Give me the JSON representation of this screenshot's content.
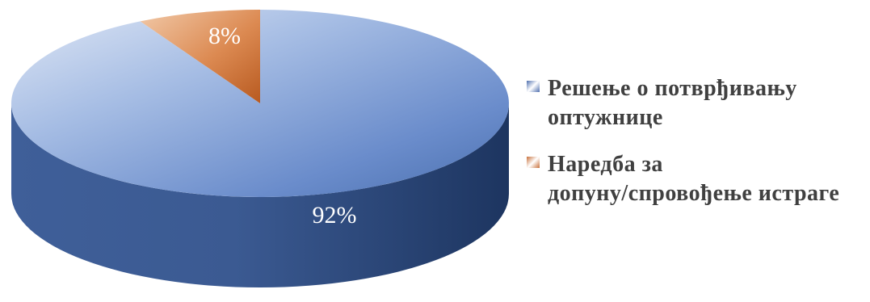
{
  "chart_data": {
    "type": "pie",
    "style": "3d",
    "categories": [
      "Решење о потврђивању оптужнице",
      "Наредба за допуну/спровођење истраге"
    ],
    "values": [
      92,
      8
    ],
    "value_labels": [
      "92%",
      "8%"
    ],
    "colors": [
      "#5a7ec0",
      "#d07a3f"
    ],
    "legend_position": "right"
  },
  "legend": {
    "items": [
      {
        "line1": "Решење о потврђивању",
        "line2": "оптужнице",
        "color": "#4f6fae"
      },
      {
        "line1": "Наредба за",
        "line2": "допуну/спровођење истраге",
        "color": "#c8703a"
      }
    ]
  }
}
